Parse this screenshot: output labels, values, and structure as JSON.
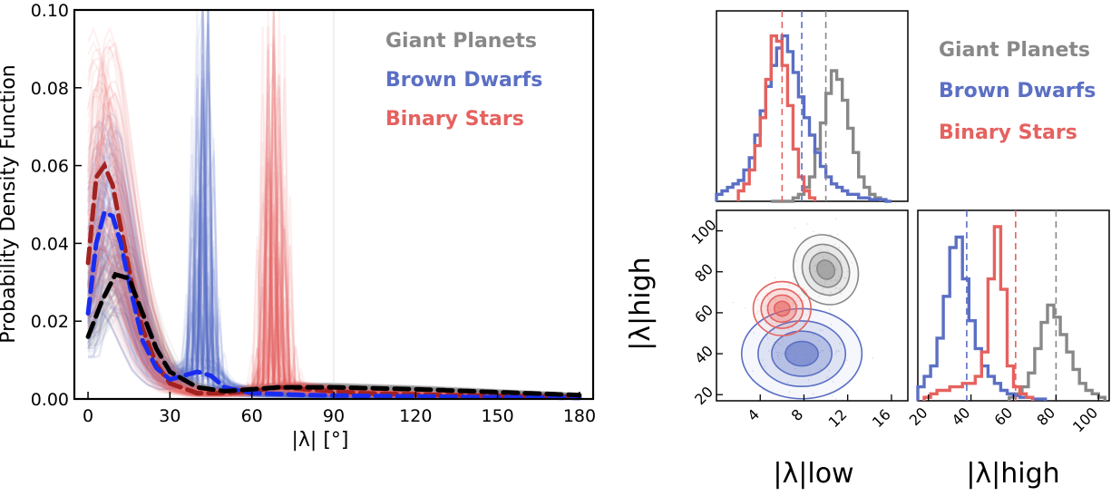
{
  "colors": {
    "giant": "#888888",
    "brown": "#5b6fc4",
    "binary": "#e5625f",
    "brown_dash": "#1a2cf0",
    "binary_dash": "#a3221f",
    "mean_dash": "#000000"
  },
  "legend": {
    "giant": "Giant Planets",
    "brown": "Brown Dwarfs",
    "binary": "Binary Stars"
  },
  "chart_data": [
    {
      "id": "pdf",
      "type": "line",
      "title": "",
      "xlabel": "|λ| [°]",
      "ylabel": "Probability Density Function",
      "xlim": [
        -5,
        185
      ],
      "ylim": [
        0,
        0.1
      ],
      "xticks": [
        0,
        30,
        60,
        90,
        120,
        150,
        180
      ],
      "yticks": [
        0.0,
        0.02,
        0.04,
        0.06,
        0.08,
        0.1
      ],
      "ytick_labels": [
        "0.00",
        "0.02",
        "0.04",
        "0.06",
        "0.08",
        "0.10"
      ],
      "series": [
        {
          "name": "Binary Stars (mean)",
          "color": "#a3221f",
          "x": [
            0,
            3,
            6,
            9,
            12,
            16,
            20,
            25,
            30,
            40,
            50,
            60,
            70,
            80,
            100,
            130,
            160,
            180
          ],
          "y": [
            0.035,
            0.057,
            0.06,
            0.055,
            0.044,
            0.03,
            0.018,
            0.009,
            0.004,
            0.0015,
            0.0015,
            0.002,
            0.003,
            0.0025,
            0.0015,
            0.001,
            0.0007,
            0.0005
          ]
        },
        {
          "name": "Brown Dwarfs (mean)",
          "color": "#1a2cf0",
          "x": [
            0,
            3,
            6,
            9,
            12,
            16,
            20,
            25,
            30,
            35,
            40,
            45,
            50,
            60,
            80,
            100,
            140,
            180
          ],
          "y": [
            0.022,
            0.04,
            0.048,
            0.047,
            0.04,
            0.027,
            0.015,
            0.008,
            0.005,
            0.006,
            0.007,
            0.006,
            0.003,
            0.0015,
            0.001,
            0.0008,
            0.0005,
            0.0003
          ]
        },
        {
          "name": "Giant Planets (mean)",
          "color": "#000000",
          "x": [
            0,
            5,
            10,
            15,
            20,
            25,
            30,
            40,
            50,
            60,
            70,
            80,
            90,
            100,
            120,
            140,
            160,
            180
          ],
          "y": [
            0.016,
            0.025,
            0.032,
            0.031,
            0.022,
            0.013,
            0.007,
            0.003,
            0.002,
            0.0025,
            0.003,
            0.003,
            0.003,
            0.0028,
            0.0025,
            0.002,
            0.0015,
            0.001
          ]
        }
      ]
    },
    {
      "id": "hist_low",
      "type": "histogram",
      "xlabel": "",
      "ylabel": "",
      "xlim": [
        0,
        17.5
      ],
      "medians": {
        "binary": 6.0,
        "brown": 7.8,
        "giant": 10.0
      },
      "series": [
        {
          "name": "Giant Planets",
          "color": "#888888",
          "bins_from": 5.0,
          "bin_width": 0.5,
          "counts": [
            0,
            0,
            0,
            0,
            2,
            4,
            8,
            14,
            30,
            45,
            62,
            75,
            70,
            58,
            42,
            28,
            14,
            8,
            4,
            2
          ]
        },
        {
          "name": "Brown Dwarfs",
          "color": "#5b6fc4",
          "bins_from": 0.0,
          "bin_width": 0.5,
          "counts": [
            4,
            6,
            8,
            10,
            12,
            18,
            25,
            38,
            52,
            66,
            78,
            88,
            95,
            86,
            74,
            60,
            48,
            38,
            28,
            20,
            14,
            10,
            8,
            6,
            4,
            4,
            2,
            2,
            1,
            1,
            1,
            0
          ]
        },
        {
          "name": "Binary Stars",
          "color": "#e5625f",
          "bins_from": 2.0,
          "bin_width": 0.5,
          "counts": [
            6,
            10,
            18,
            32,
            48,
            70,
            95,
            92,
            78,
            55,
            30,
            14,
            6,
            2
          ]
        }
      ]
    },
    {
      "id": "contour",
      "type": "contour",
      "xlabel": "|λ|low",
      "ylabel": "|λ|high",
      "xlim": [
        0,
        17.5
      ],
      "ylim": [
        17,
        110
      ],
      "xticks": [
        4,
        8,
        12,
        16
      ],
      "yticks": [
        20,
        40,
        60,
        80,
        100
      ],
      "series": [
        {
          "name": "Giant Planets",
          "color": "#888888",
          "center": [
            10.0,
            81.0
          ],
          "sigma": [
            1.3,
            8.0
          ],
          "angle_deg": 30
        },
        {
          "name": "Brown Dwarfs",
          "color": "#5b6fc4",
          "center": [
            7.8,
            40.0
          ],
          "sigma": [
            2.5,
            10.0
          ],
          "angle_deg": 0
        },
        {
          "name": "Binary Stars",
          "color": "#e5625f",
          "center": [
            6.0,
            62.0
          ],
          "sigma": [
            1.2,
            6.0
          ],
          "angle_deg": 0
        }
      ]
    },
    {
      "id": "hist_high",
      "type": "histogram",
      "xlabel": "|λ|high",
      "ylabel": "",
      "xlim": [
        15,
        105
      ],
      "xticks": [
        20,
        40,
        60,
        80,
        100
      ],
      "medians": {
        "brown": 38.0,
        "binary": 61.0,
        "giant": 80.0
      },
      "series": [
        {
          "name": "Giant Planets",
          "color": "#888888",
          "bins_from": 58.0,
          "bin_width": 3.0,
          "counts": [
            2,
            4,
            8,
            16,
            30,
            45,
            55,
            48,
            38,
            28,
            18,
            10,
            6,
            4,
            2
          ]
        },
        {
          "name": "Brown Dwarfs",
          "color": "#5b6fc4",
          "bins_from": 15.0,
          "bin_width": 3.0,
          "counts": [
            8,
            14,
            20,
            36,
            60,
            88,
            94,
            70,
            46,
            30,
            20,
            14,
            10,
            6,
            4,
            3,
            2,
            2,
            1,
            1
          ]
        },
        {
          "name": "Binary Stars",
          "color": "#e5625f",
          "bins_from": 18.0,
          "bin_width": 3.0,
          "counts": [
            2,
            4,
            6,
            6,
            8,
            8,
            10,
            10,
            14,
            28,
            70,
            100,
            64,
            20,
            8,
            4,
            2
          ]
        }
      ]
    }
  ]
}
